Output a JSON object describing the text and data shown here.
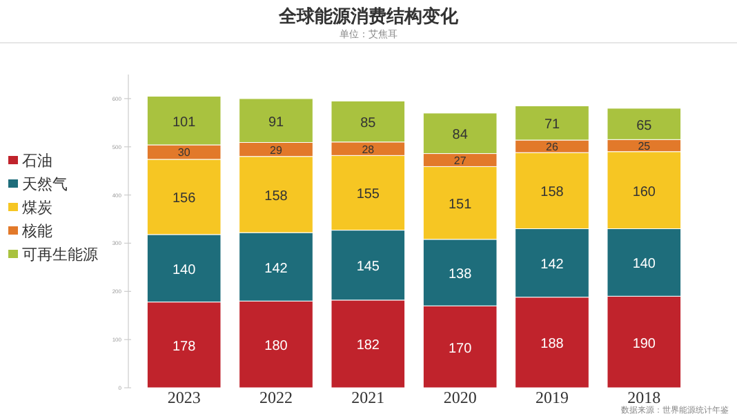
{
  "chart_data": {
    "type": "bar",
    "title": "全球能源消费结构变化",
    "subtitle": "单位：艾焦耳",
    "categories": [
      "2023",
      "2022",
      "2021",
      "2020",
      "2019",
      "2018"
    ],
    "stacked": true,
    "data_labels": true,
    "legend": "left",
    "grid": false,
    "ylim": [
      0,
      650
    ],
    "yticks": [
      0,
      100,
      200,
      300,
      400,
      500,
      600
    ],
    "series": [
      {
        "name": "石油",
        "color": "#c0232c",
        "values": [
          178,
          180,
          182,
          170,
          188,
          190
        ]
      },
      {
        "name": "天然气",
        "color": "#1e6d7b",
        "values": [
          140,
          142,
          145,
          138,
          142,
          140
        ]
      },
      {
        "name": "煤炭",
        "color": "#f6c623",
        "values": [
          156,
          158,
          155,
          151,
          158,
          160
        ]
      },
      {
        "name": "核能",
        "color": "#e2792a",
        "values": [
          30,
          29,
          28,
          27,
          26,
          25
        ]
      },
      {
        "name": "可再生能源",
        "color": "#a9c23f",
        "values": [
          101,
          91,
          85,
          84,
          71,
          65
        ]
      }
    ],
    "annotations": [
      "数据来源：世界能源统计年鉴"
    ]
  }
}
